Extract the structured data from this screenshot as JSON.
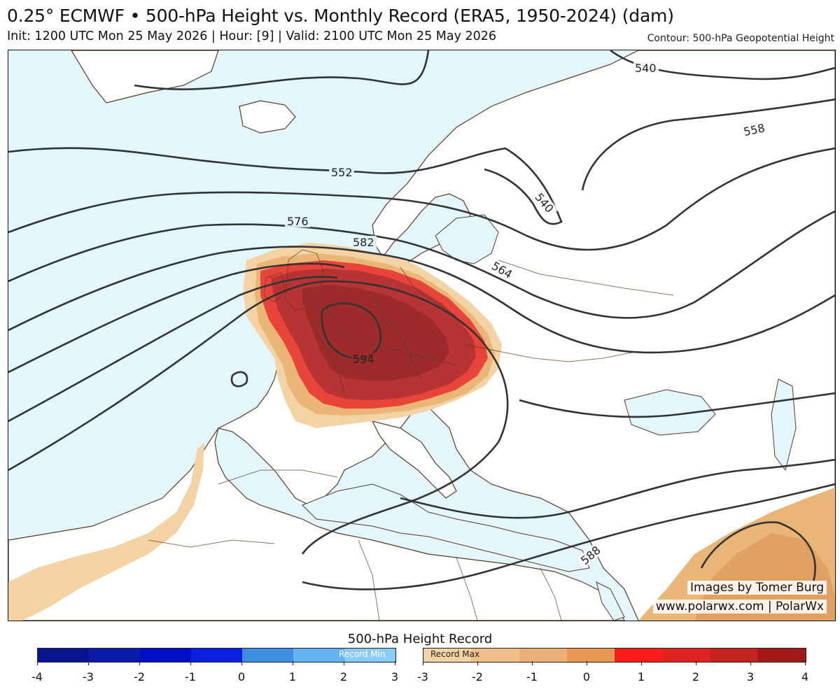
{
  "header": {
    "title": "0.25° ECMWF • 500-hPa Height vs. Monthly Record (ERA5, 1950-2024) (dam)",
    "subtitle": "Init: 1200 UTC Mon 25 May 2026 | Hour: [9] | Valid: 2100 UTC Mon 25 May 2026",
    "contour_note": "Contour: 500-hPa Geopotential Height"
  },
  "map": {
    "ocean_color": "#e3f6fb",
    "land_color": "#ffffff",
    "border_color": "#5a3a22",
    "contour_color": "#333333",
    "contour_labels": [
      "540",
      "540",
      "558",
      "552",
      "576",
      "582",
      "564",
      "594",
      "588"
    ],
    "record_max_colors": [
      "#f3d3a3",
      "#eab677",
      "#e2803f",
      "#e8443a",
      "#d92e2e",
      "#b83333",
      "#9e2b2b"
    ]
  },
  "credits": {
    "line1": "Images by Tomer Burg",
    "line2": "www.polarwx.com | PolarWx"
  },
  "colorbar": {
    "title": "500-hPa Height Record",
    "min_label": "Record Min",
    "max_label": "Record Max",
    "min_colors": [
      "#0a1490",
      "#0a1aa8",
      "#0010c8",
      "#0a1fe0",
      "#3f8de0",
      "#63b3f0",
      "#88ccf7"
    ],
    "max_colors": [
      "#f3d3a3",
      "#efc08a",
      "#eab077",
      "#e89a55",
      "#ff1a1a",
      "#e12222",
      "#c42121",
      "#a31818"
    ],
    "min_ticks": [
      "-4",
      "-3",
      "-2",
      "-1",
      "0",
      "1",
      "2",
      "3"
    ],
    "max_ticks": [
      "-3",
      "-2",
      "-1",
      "0",
      "1",
      "2",
      "3",
      "4"
    ]
  }
}
